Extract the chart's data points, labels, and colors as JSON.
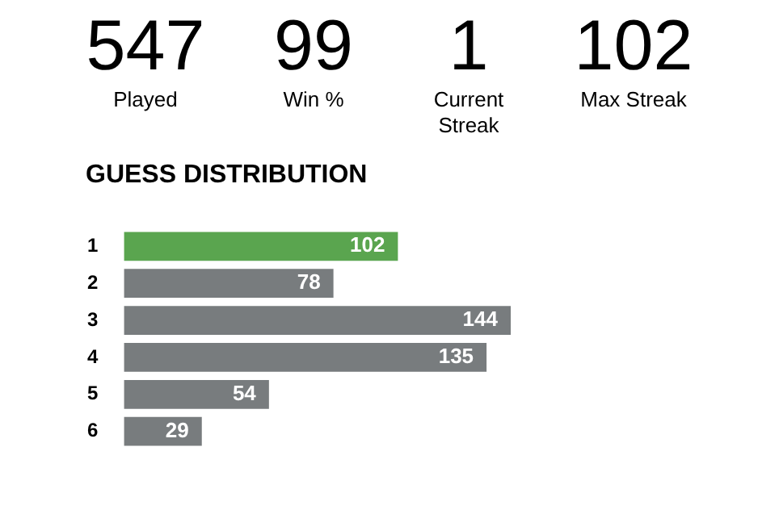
{
  "chart_data": {
    "type": "bar",
    "orientation": "horizontal",
    "title": "GUESS DISTRIBUTION",
    "categories": [
      "1",
      "2",
      "3",
      "4",
      "5",
      "6"
    ],
    "values": [
      102,
      78,
      144,
      135,
      54,
      29
    ],
    "colors": [
      "#5aa54f",
      "#787c7e",
      "#787c7e",
      "#787c7e",
      "#787c7e",
      "#787c7e"
    ],
    "data_labels": true,
    "annotations": [
      "547",
      "Played",
      "99",
      "Win %",
      "1",
      "Current Streak",
      "102",
      "Max Streak"
    ]
  }
}
